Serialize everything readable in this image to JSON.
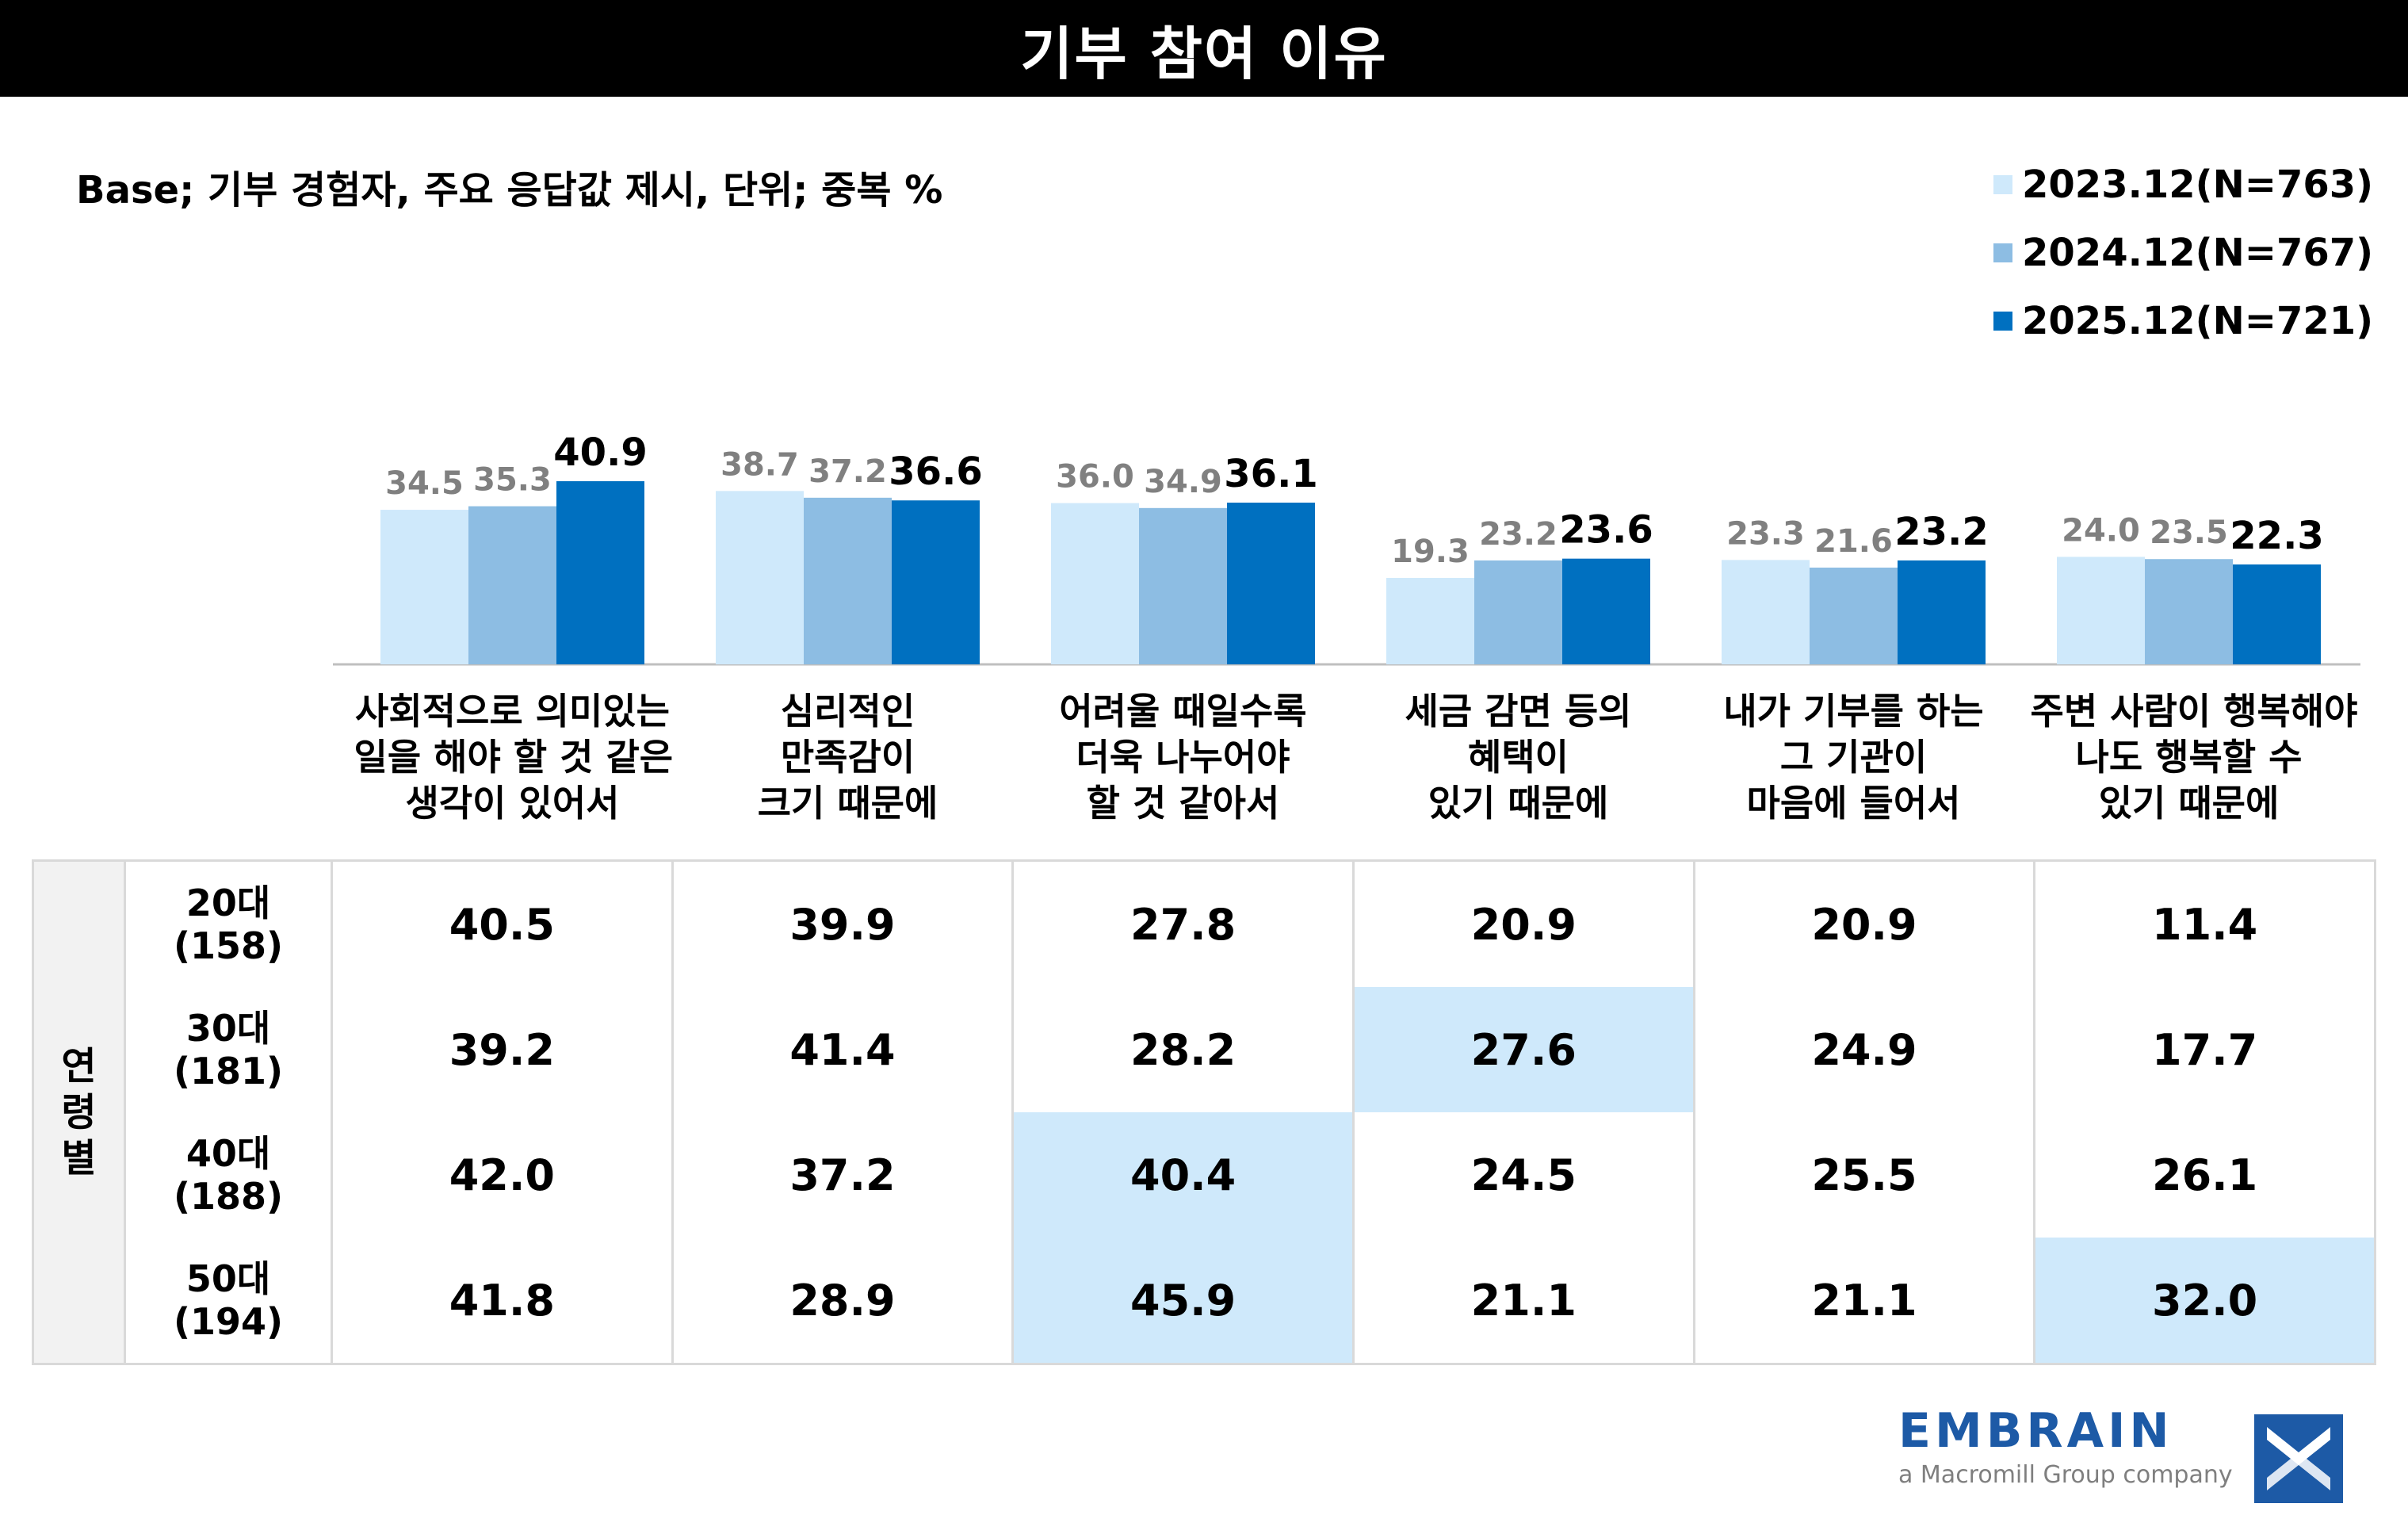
{
  "title": "기부 참여 이유",
  "base_note": "Base; 기부 경험자, 주요 응답값 제시, 단위; 중복 %",
  "legend": [
    {
      "label": "2023.12(N=763)",
      "color": "#cfe9fb"
    },
    {
      "label": "2024.12(N=767)",
      "color": "#8dbde3"
    },
    {
      "label": "2025.12(N=721)",
      "color": "#0070c0"
    }
  ],
  "chart_data": {
    "type": "bar",
    "title": "기부 참여 이유",
    "categories": [
      [
        "사회적으로 의미있는",
        "일을 해야 할 것 같은",
        "생각이 있어서"
      ],
      [
        "심리적인",
        "만족감이",
        "크기 때문에"
      ],
      [
        "어려울 때일수록",
        "더욱 나누어야",
        "할 것 같아서"
      ],
      [
        "세금 감면 등의",
        "혜택이",
        "있기 때문에"
      ],
      [
        "내가 기부를 하는",
        "그 기관이",
        "마음에 들어서"
      ],
      [
        "주변 사람이 행복해야",
        "나도 행복할 수",
        "있기 때문에"
      ]
    ],
    "series": [
      {
        "name": "2023.12(N=763)",
        "values": [
          34.5,
          38.7,
          36.0,
          19.3,
          23.3,
          24.0
        ]
      },
      {
        "name": "2024.12(N=767)",
        "values": [
          35.3,
          37.2,
          34.9,
          23.2,
          21.6,
          23.5
        ]
      },
      {
        "name": "2025.12(N=721)",
        "values": [
          40.9,
          36.6,
          36.1,
          23.6,
          23.2,
          22.3
        ]
      }
    ],
    "value_labels": [
      [
        "34.5",
        "38.7",
        "36.0",
        "19.3",
        "23.3",
        "24.0"
      ],
      [
        "35.3",
        "37.2",
        "34.9",
        "23.2",
        "21.6",
        "23.5"
      ],
      [
        "40.9",
        "36.6",
        "36.1",
        "23.6",
        "23.2",
        "22.3"
      ]
    ],
    "label_colors": [
      "#808080",
      "#808080",
      "#000000"
    ],
    "ylim": [
      0,
      50
    ],
    "xlabel": "",
    "ylabel": "%",
    "highlight_color": "#cfe9fb",
    "age_table": {
      "group_label": "연령별",
      "rows": [
        {
          "age": "20대",
          "n": "(158)",
          "values": [
            "40.5",
            "39.9",
            "27.8",
            "20.9",
            "20.9",
            "11.4"
          ],
          "highlight": [
            false,
            false,
            false,
            false,
            false,
            false
          ]
        },
        {
          "age": "30대",
          "n": "(181)",
          "values": [
            "39.2",
            "41.4",
            "28.2",
            "27.6",
            "24.9",
            "17.7"
          ],
          "highlight": [
            false,
            false,
            false,
            true,
            false,
            false
          ]
        },
        {
          "age": "40대",
          "n": "(188)",
          "values": [
            "42.0",
            "37.2",
            "40.4",
            "24.5",
            "25.5",
            "26.1"
          ],
          "highlight": [
            false,
            false,
            true,
            false,
            false,
            false
          ]
        },
        {
          "age": "50대",
          "n": "(194)",
          "values": [
            "41.8",
            "28.9",
            "45.9",
            "21.1",
            "21.1",
            "32.0"
          ],
          "highlight": [
            false,
            false,
            true,
            false,
            false,
            true
          ]
        }
      ]
    }
  },
  "logo": {
    "name": "EMBRAIN",
    "tagline": "a Macromill Group company"
  }
}
